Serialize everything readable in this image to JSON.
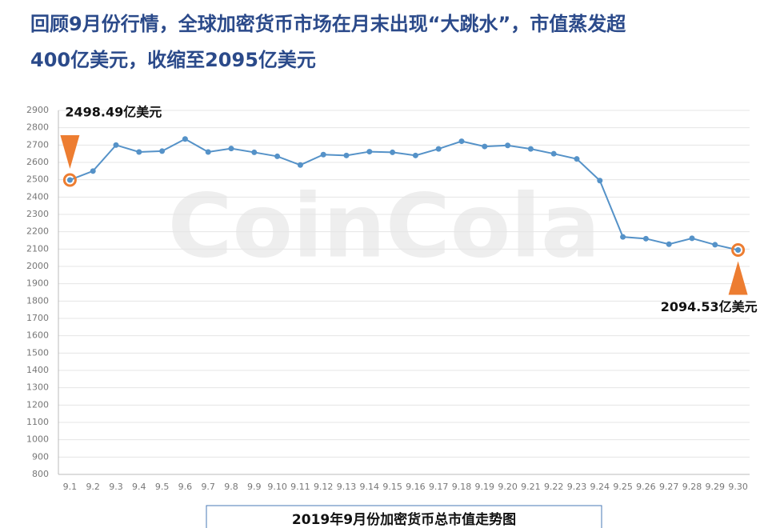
{
  "heading": [
    "回顾9月份行情，全球加密货币市场在月末出现“大跳水”，市值蒸发超",
    "400亿美元，收缩至2095亿美元"
  ],
  "chart_data": {
    "type": "line",
    "title": "2019年9月份加密货币总市值走势图",
    "watermark": "CoinCola",
    "categories": [
      "9.1",
      "9.2",
      "9.3",
      "9.4",
      "9.5",
      "9.6",
      "9.7",
      "9.8",
      "9.9",
      "9.10",
      "9.11",
      "9.12",
      "9.13",
      "9.14",
      "9.15",
      "9.16",
      "9.17",
      "9.18",
      "9.19",
      "9.20",
      "9.21",
      "9.22",
      "9.23",
      "9.24",
      "9.25",
      "9.26",
      "9.27",
      "9.28",
      "9.29",
      "9.30"
    ],
    "values": [
      2498.49,
      2550,
      2700,
      2660,
      2665,
      2735,
      2660,
      2680,
      2658,
      2635,
      2585,
      2645,
      2640,
      2662,
      2658,
      2640,
      2678,
      2722,
      2692,
      2698,
      2678,
      2650,
      2620,
      2495,
      2170,
      2160,
      2128,
      2162,
      2125,
      2094.53
    ],
    "value_labels": [
      "2498.49亿美元",
      null,
      null,
      null,
      null,
      null,
      null,
      null,
      null,
      null,
      null,
      null,
      null,
      null,
      null,
      null,
      null,
      null,
      null,
      null,
      null,
      null,
      null,
      null,
      null,
      null,
      null,
      null,
      null,
      "2094.53亿美元"
    ],
    "color": "#5592c8",
    "highlight_color": "#ed7d31",
    "ylim": [
      800,
      2900
    ],
    "yticks": [
      800,
      900,
      1000,
      1100,
      1200,
      1300,
      1400,
      1500,
      1600,
      1700,
      1800,
      1900,
      2000,
      2100,
      2200,
      2300,
      2400,
      2500,
      2600,
      2700,
      2800,
      2900
    ],
    "grid": true
  }
}
